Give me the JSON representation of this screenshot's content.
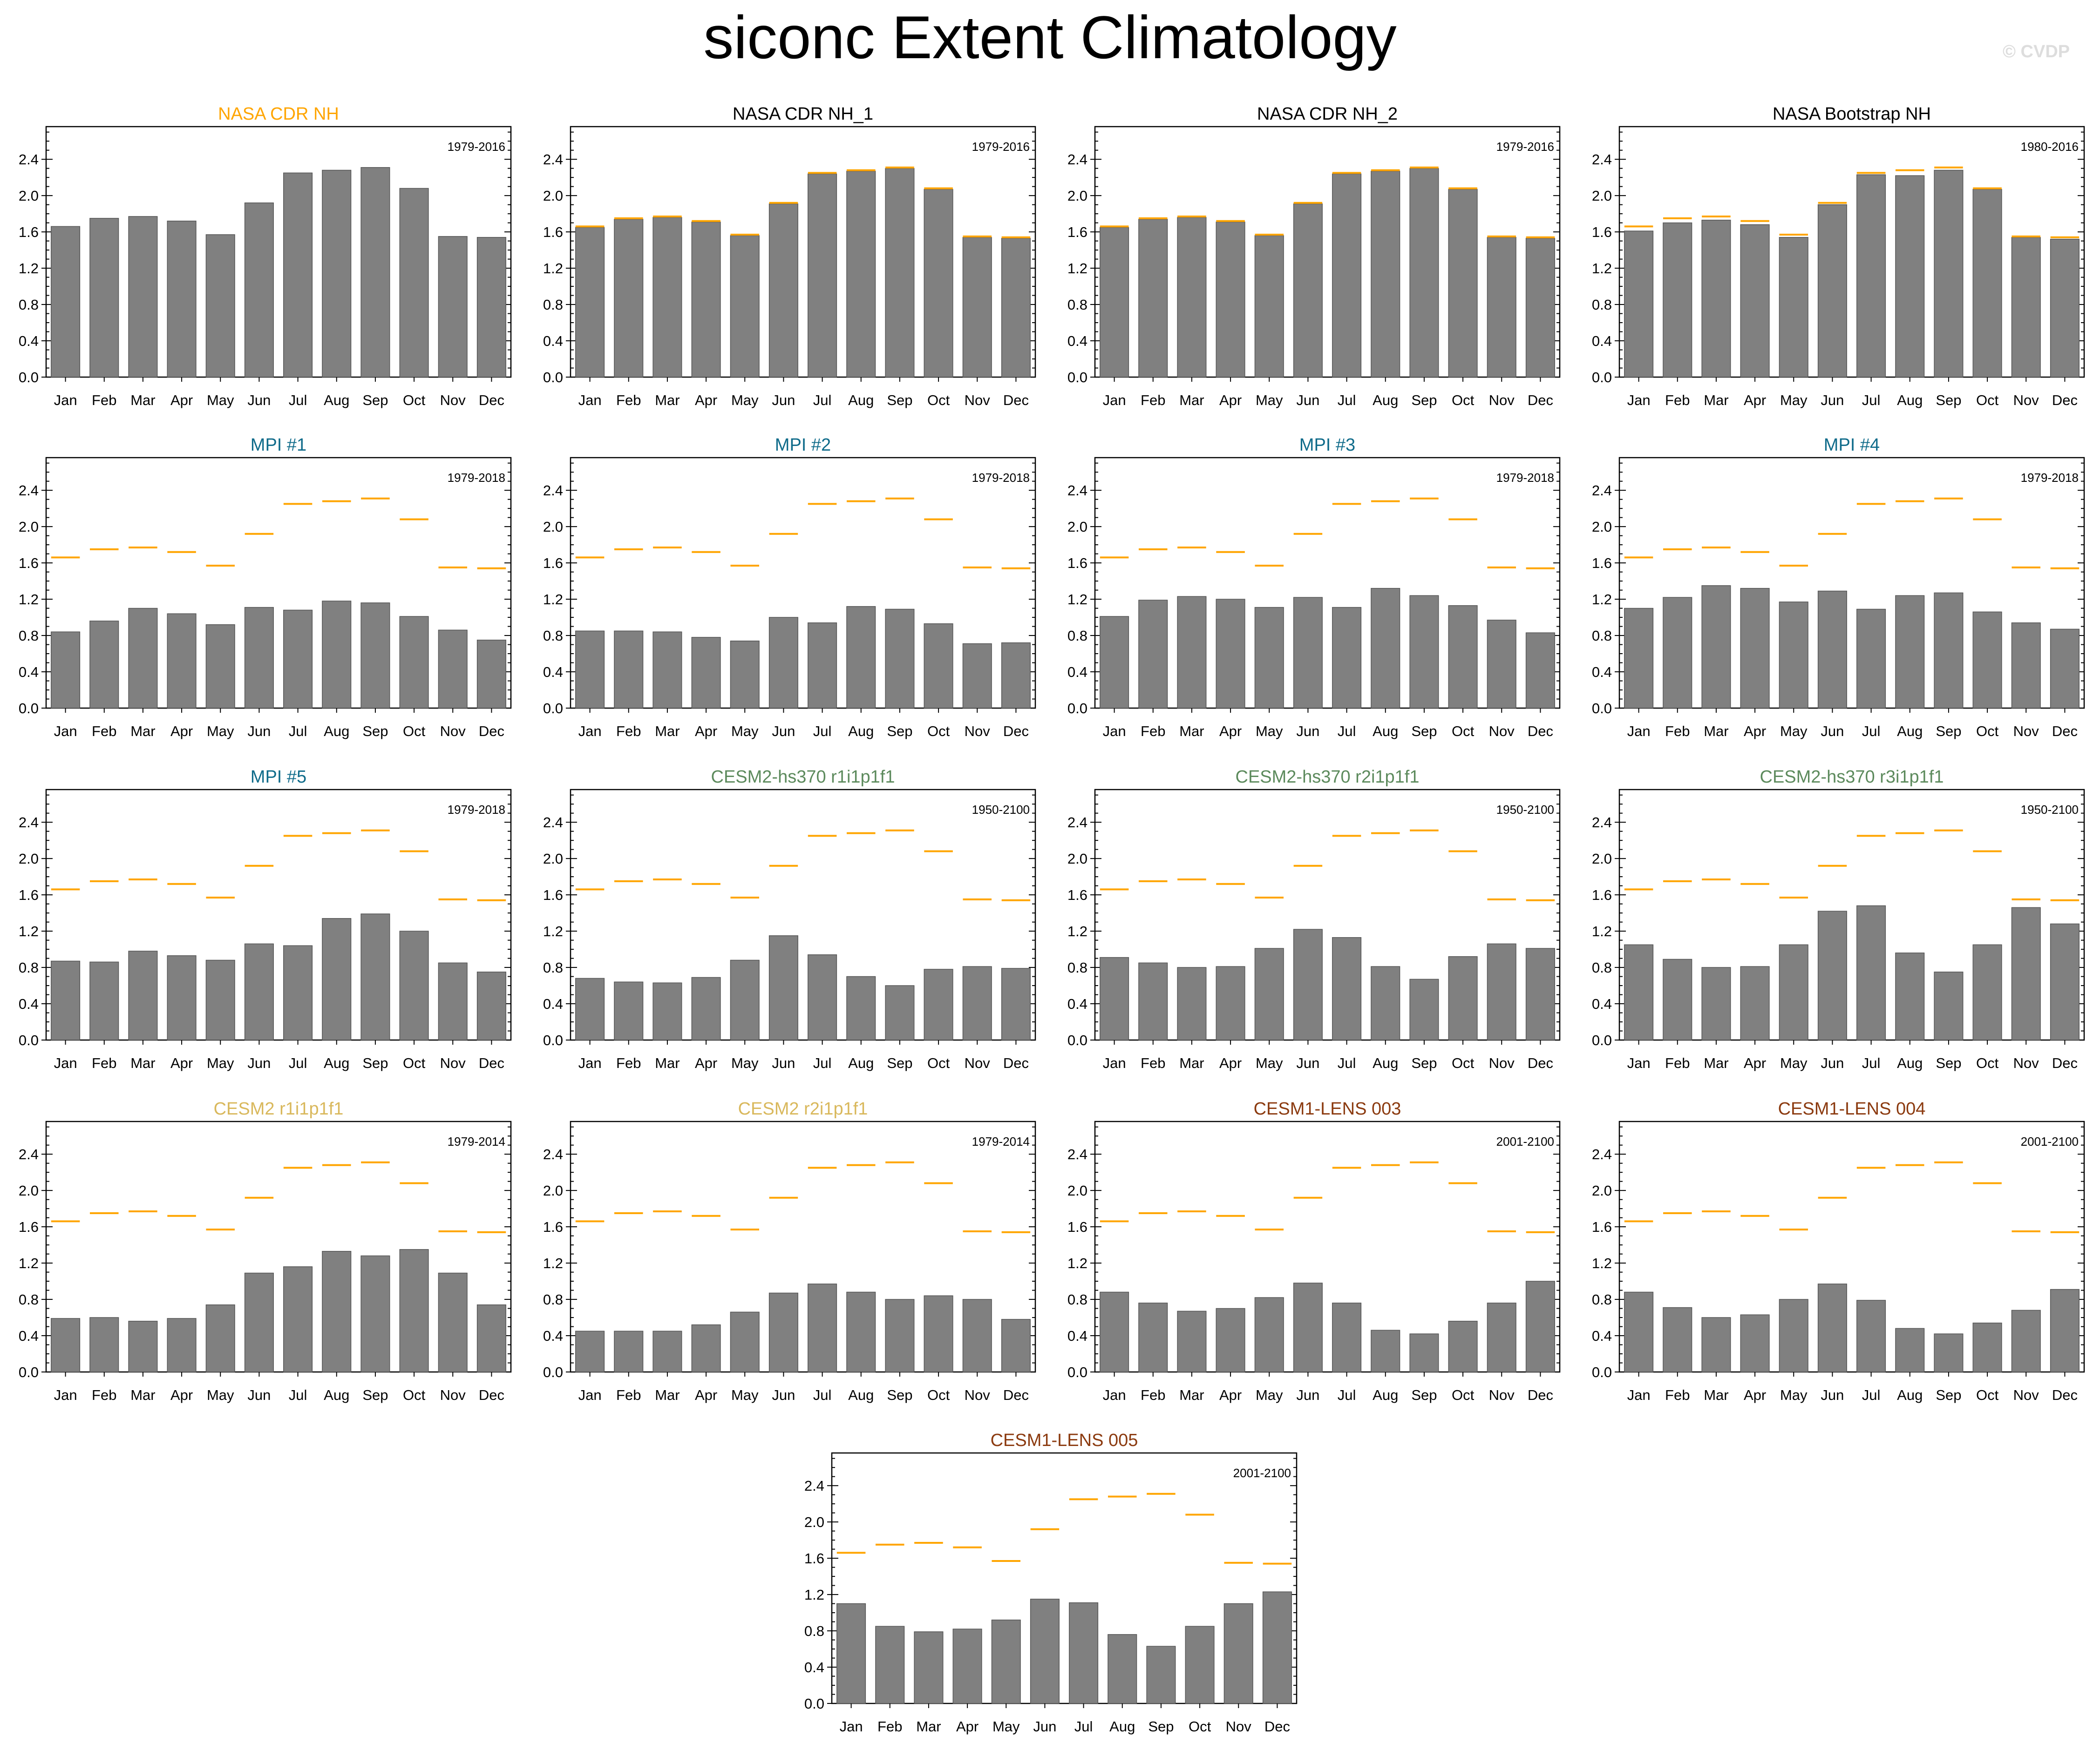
{
  "title": "siconc Extent Climatology",
  "watermark": "© CVDP",
  "colors": {
    "bar": "#808080",
    "bar_edge": "#555555",
    "reference": "#ffa500",
    "nasa_cdr_nh_title": "#ffa500",
    "obs_title": "#000000",
    "mpi_title": "#0f6b8a",
    "cesm2_hs370_title": "#5c8a5c",
    "cesm2_title": "#d9b85c",
    "cesm1_lens_title": "#8b3a0f"
  },
  "reference_values": [
    1.66,
    1.75,
    1.77,
    1.72,
    1.57,
    1.92,
    2.25,
    2.28,
    2.31,
    2.08,
    1.55,
    1.54
  ],
  "chart_data": [
    {
      "type": "bar",
      "title": "NASA CDR NH",
      "title_color": "nasa_cdr_nh_title",
      "period": "1979-2016",
      "show_reference": false,
      "categories": [
        "Jan",
        "Feb",
        "Mar",
        "Apr",
        "May",
        "Jun",
        "Jul",
        "Aug",
        "Sep",
        "Oct",
        "Nov",
        "Dec"
      ],
      "values": [
        1.66,
        1.75,
        1.77,
        1.72,
        1.57,
        1.92,
        2.25,
        2.28,
        2.31,
        2.08,
        1.55,
        1.54
      ],
      "yticks": [
        "0.0",
        "0.4",
        "0.8",
        "1.2",
        "1.6",
        "2.0",
        "2.4"
      ],
      "ylim": [
        0,
        2.76
      ]
    },
    {
      "type": "bar",
      "title": "NASA CDR NH_1",
      "title_color": "obs_title",
      "period": "1979-2016",
      "show_reference": true,
      "categories": [
        "Jan",
        "Feb",
        "Mar",
        "Apr",
        "May",
        "Jun",
        "Jul",
        "Aug",
        "Sep",
        "Oct",
        "Nov",
        "Dec"
      ],
      "values": [
        1.65,
        1.74,
        1.76,
        1.71,
        1.56,
        1.91,
        2.24,
        2.27,
        2.3,
        2.07,
        1.54,
        1.53
      ],
      "yticks": [
        "0.0",
        "0.4",
        "0.8",
        "1.2",
        "1.6",
        "2.0",
        "2.4"
      ],
      "ylim": [
        0,
        2.76
      ]
    },
    {
      "type": "bar",
      "title": "NASA CDR NH_2",
      "title_color": "obs_title",
      "period": "1979-2016",
      "show_reference": true,
      "categories": [
        "Jan",
        "Feb",
        "Mar",
        "Apr",
        "May",
        "Jun",
        "Jul",
        "Aug",
        "Sep",
        "Oct",
        "Nov",
        "Dec"
      ],
      "values": [
        1.65,
        1.74,
        1.76,
        1.71,
        1.56,
        1.91,
        2.24,
        2.27,
        2.3,
        2.07,
        1.54,
        1.53
      ],
      "yticks": [
        "0.0",
        "0.4",
        "0.8",
        "1.2",
        "1.6",
        "2.0",
        "2.4"
      ],
      "ylim": [
        0,
        2.76
      ]
    },
    {
      "type": "bar",
      "title": "NASA Bootstrap NH",
      "title_color": "obs_title",
      "period": "1980-2016",
      "show_reference": true,
      "categories": [
        "Jan",
        "Feb",
        "Mar",
        "Apr",
        "May",
        "Jun",
        "Jul",
        "Aug",
        "Sep",
        "Oct",
        "Nov",
        "Dec"
      ],
      "values": [
        1.61,
        1.7,
        1.73,
        1.68,
        1.54,
        1.9,
        2.23,
        2.22,
        2.28,
        2.07,
        1.54,
        1.52
      ],
      "yticks": [
        "0.0",
        "0.4",
        "0.8",
        "1.2",
        "1.6",
        "2.0",
        "2.4"
      ],
      "ylim": [
        0,
        2.76
      ]
    },
    {
      "type": "bar",
      "title": "MPI #1",
      "title_color": "mpi_title",
      "period": "1979-2018",
      "show_reference": true,
      "categories": [
        "Jan",
        "Feb",
        "Mar",
        "Apr",
        "May",
        "Jun",
        "Jul",
        "Aug",
        "Sep",
        "Oct",
        "Nov",
        "Dec"
      ],
      "values": [
        0.84,
        0.96,
        1.1,
        1.04,
        0.92,
        1.11,
        1.08,
        1.18,
        1.16,
        1.01,
        0.86,
        0.75
      ],
      "yticks": [
        "0.0",
        "0.4",
        "0.8",
        "1.2",
        "1.6",
        "2.0",
        "2.4"
      ],
      "ylim": [
        0,
        2.76
      ]
    },
    {
      "type": "bar",
      "title": "MPI #2",
      "title_color": "mpi_title",
      "period": "1979-2018",
      "show_reference": true,
      "categories": [
        "Jan",
        "Feb",
        "Mar",
        "Apr",
        "May",
        "Jun",
        "Jul",
        "Aug",
        "Sep",
        "Oct",
        "Nov",
        "Dec"
      ],
      "values": [
        0.85,
        0.85,
        0.84,
        0.78,
        0.74,
        1.0,
        0.94,
        1.12,
        1.09,
        0.93,
        0.71,
        0.72
      ],
      "yticks": [
        "0.0",
        "0.4",
        "0.8",
        "1.2",
        "1.6",
        "2.0",
        "2.4"
      ],
      "ylim": [
        0,
        2.76
      ]
    },
    {
      "type": "bar",
      "title": "MPI #3",
      "title_color": "mpi_title",
      "period": "1979-2018",
      "show_reference": true,
      "categories": [
        "Jan",
        "Feb",
        "Mar",
        "Apr",
        "May",
        "Jun",
        "Jul",
        "Aug",
        "Sep",
        "Oct",
        "Nov",
        "Dec"
      ],
      "values": [
        1.01,
        1.19,
        1.23,
        1.2,
        1.11,
        1.22,
        1.11,
        1.32,
        1.24,
        1.13,
        0.97,
        0.83
      ],
      "yticks": [
        "0.0",
        "0.4",
        "0.8",
        "1.2",
        "1.6",
        "2.0",
        "2.4"
      ],
      "ylim": [
        0,
        2.76
      ]
    },
    {
      "type": "bar",
      "title": "MPI #4",
      "title_color": "mpi_title",
      "period": "1979-2018",
      "show_reference": true,
      "categories": [
        "Jan",
        "Feb",
        "Mar",
        "Apr",
        "May",
        "Jun",
        "Jul",
        "Aug",
        "Sep",
        "Oct",
        "Nov",
        "Dec"
      ],
      "values": [
        1.1,
        1.22,
        1.35,
        1.32,
        1.17,
        1.29,
        1.09,
        1.24,
        1.27,
        1.06,
        0.94,
        0.87
      ],
      "yticks": [
        "0.0",
        "0.4",
        "0.8",
        "1.2",
        "1.6",
        "2.0",
        "2.4"
      ],
      "ylim": [
        0,
        2.76
      ]
    },
    {
      "type": "bar",
      "title": "MPI #5",
      "title_color": "mpi_title",
      "period": "1979-2018",
      "show_reference": true,
      "categories": [
        "Jan",
        "Feb",
        "Mar",
        "Apr",
        "May",
        "Jun",
        "Jul",
        "Aug",
        "Sep",
        "Oct",
        "Nov",
        "Dec"
      ],
      "values": [
        0.87,
        0.86,
        0.98,
        0.93,
        0.88,
        1.06,
        1.04,
        1.34,
        1.39,
        1.2,
        0.85,
        0.75
      ],
      "yticks": [
        "0.0",
        "0.4",
        "0.8",
        "1.2",
        "1.6",
        "2.0",
        "2.4"
      ],
      "ylim": [
        0,
        2.76
      ]
    },
    {
      "type": "bar",
      "title": "CESM2-hs370 r1i1p1f1",
      "title_color": "cesm2_hs370_title",
      "period": "1950-2100",
      "show_reference": true,
      "categories": [
        "Jan",
        "Feb",
        "Mar",
        "Apr",
        "May",
        "Jun",
        "Jul",
        "Aug",
        "Sep",
        "Oct",
        "Nov",
        "Dec"
      ],
      "values": [
        0.68,
        0.64,
        0.63,
        0.69,
        0.88,
        1.15,
        0.94,
        0.7,
        0.6,
        0.78,
        0.81,
        0.79
      ],
      "yticks": [
        "0.0",
        "0.4",
        "0.8",
        "1.2",
        "1.6",
        "2.0",
        "2.4"
      ],
      "ylim": [
        0,
        2.76
      ]
    },
    {
      "type": "bar",
      "title": "CESM2-hs370 r2i1p1f1",
      "title_color": "cesm2_hs370_title",
      "period": "1950-2100",
      "show_reference": true,
      "categories": [
        "Jan",
        "Feb",
        "Mar",
        "Apr",
        "May",
        "Jun",
        "Jul",
        "Aug",
        "Sep",
        "Oct",
        "Nov",
        "Dec"
      ],
      "values": [
        0.91,
        0.85,
        0.8,
        0.81,
        1.01,
        1.22,
        1.13,
        0.81,
        0.67,
        0.92,
        1.06,
        1.01
      ],
      "yticks": [
        "0.0",
        "0.4",
        "0.8",
        "1.2",
        "1.6",
        "2.0",
        "2.4"
      ],
      "ylim": [
        0,
        2.76
      ]
    },
    {
      "type": "bar",
      "title": "CESM2-hs370 r3i1p1f1",
      "title_color": "cesm2_hs370_title",
      "period": "1950-2100",
      "show_reference": true,
      "categories": [
        "Jan",
        "Feb",
        "Mar",
        "Apr",
        "May",
        "Jun",
        "Jul",
        "Aug",
        "Sep",
        "Oct",
        "Nov",
        "Dec"
      ],
      "values": [
        1.05,
        0.89,
        0.8,
        0.81,
        1.05,
        1.42,
        1.48,
        0.96,
        0.75,
        1.05,
        1.46,
        1.28
      ],
      "yticks": [
        "0.0",
        "0.4",
        "0.8",
        "1.2",
        "1.6",
        "2.0",
        "2.4"
      ],
      "ylim": [
        0,
        2.76
      ]
    },
    {
      "type": "bar",
      "title": "CESM2 r1i1p1f1",
      "title_color": "cesm2_title",
      "period": "1979-2014",
      "show_reference": true,
      "categories": [
        "Jan",
        "Feb",
        "Mar",
        "Apr",
        "May",
        "Jun",
        "Jul",
        "Aug",
        "Sep",
        "Oct",
        "Nov",
        "Dec"
      ],
      "values": [
        0.59,
        0.6,
        0.56,
        0.59,
        0.74,
        1.09,
        1.16,
        1.33,
        1.28,
        1.35,
        1.09,
        0.74
      ],
      "yticks": [
        "0.0",
        "0.4",
        "0.8",
        "1.2",
        "1.6",
        "2.0",
        "2.4"
      ],
      "ylim": [
        0,
        2.76
      ]
    },
    {
      "type": "bar",
      "title": "CESM2 r2i1p1f1",
      "title_color": "cesm2_title",
      "period": "1979-2014",
      "show_reference": true,
      "categories": [
        "Jan",
        "Feb",
        "Mar",
        "Apr",
        "May",
        "Jun",
        "Jul",
        "Aug",
        "Sep",
        "Oct",
        "Nov",
        "Dec"
      ],
      "values": [
        0.45,
        0.45,
        0.45,
        0.52,
        0.66,
        0.87,
        0.97,
        0.88,
        0.8,
        0.84,
        0.8,
        0.58
      ],
      "yticks": [
        "0.0",
        "0.4",
        "0.8",
        "1.2",
        "1.6",
        "2.0",
        "2.4"
      ],
      "ylim": [
        0,
        2.76
      ]
    },
    {
      "type": "bar",
      "title": "CESM1-LENS 003",
      "title_color": "cesm1_lens_title",
      "period": "2001-2100",
      "show_reference": true,
      "categories": [
        "Jan",
        "Feb",
        "Mar",
        "Apr",
        "May",
        "Jun",
        "Jul",
        "Aug",
        "Sep",
        "Oct",
        "Nov",
        "Dec"
      ],
      "values": [
        0.88,
        0.76,
        0.67,
        0.7,
        0.82,
        0.98,
        0.76,
        0.46,
        0.42,
        0.56,
        0.76,
        1.0
      ],
      "yticks": [
        "0.0",
        "0.4",
        "0.8",
        "1.2",
        "1.6",
        "2.0",
        "2.4"
      ],
      "ylim": [
        0,
        2.76
      ]
    },
    {
      "type": "bar",
      "title": "CESM1-LENS 004",
      "title_color": "cesm1_lens_title",
      "period": "2001-2100",
      "show_reference": true,
      "categories": [
        "Jan",
        "Feb",
        "Mar",
        "Apr",
        "May",
        "Jun",
        "Jul",
        "Aug",
        "Sep",
        "Oct",
        "Nov",
        "Dec"
      ],
      "values": [
        0.88,
        0.71,
        0.6,
        0.63,
        0.8,
        0.97,
        0.79,
        0.48,
        0.42,
        0.54,
        0.68,
        0.91
      ],
      "yticks": [
        "0.0",
        "0.4",
        "0.8",
        "1.2",
        "1.6",
        "2.0",
        "2.4"
      ],
      "ylim": [
        0,
        2.76
      ]
    },
    {
      "type": "bar",
      "title": "CESM1-LENS 005",
      "title_color": "cesm1_lens_title",
      "period": "2001-2100",
      "show_reference": true,
      "categories": [
        "Jan",
        "Feb",
        "Mar",
        "Apr",
        "May",
        "Jun",
        "Jul",
        "Aug",
        "Sep",
        "Oct",
        "Nov",
        "Dec"
      ],
      "values": [
        1.1,
        0.85,
        0.79,
        0.82,
        0.92,
        1.15,
        1.11,
        0.76,
        0.63,
        0.85,
        1.1,
        1.23
      ],
      "yticks": [
        "0.0",
        "0.4",
        "0.8",
        "1.2",
        "1.6",
        "2.0",
        "2.4"
      ],
      "ylim": [
        0,
        2.76
      ]
    }
  ]
}
